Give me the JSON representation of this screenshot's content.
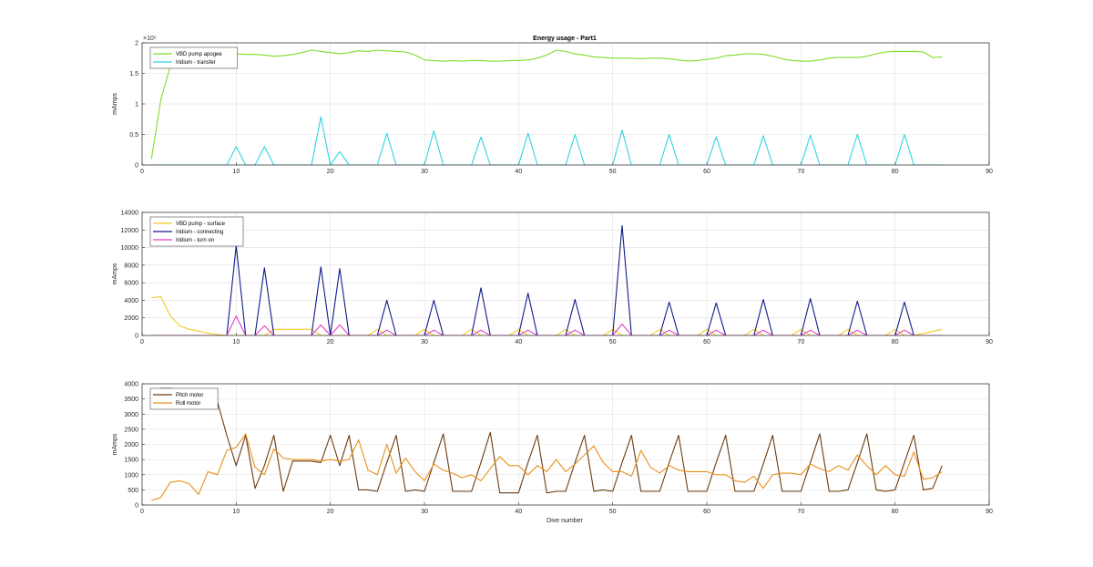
{
  "title": "Energy usage - Part1",
  "xlabel": "Dive number",
  "chart_data": [
    {
      "type": "line",
      "title": "Energy usage - Part1",
      "ylabel": "mAmps",
      "exponent_label": "×10⁵",
      "xlim": [
        0,
        90
      ],
      "ylim": [
        0,
        2
      ],
      "xticks": [
        "0",
        "10",
        "20",
        "30",
        "40",
        "50",
        "60",
        "70",
        "80",
        "90"
      ],
      "yticks": [
        "0",
        "0.5",
        "1",
        "1.5",
        "2"
      ],
      "legend_position": "top-left",
      "grid": true,
      "series": [
        {
          "name": "VBD pump apogee",
          "color": "#7fdc27",
          "x": [
            1,
            2,
            3,
            4,
            5,
            6,
            7,
            8,
            9,
            10,
            11,
            12,
            13,
            14,
            15,
            16,
            17,
            18,
            19,
            20,
            21,
            22,
            23,
            24,
            25,
            26,
            27,
            28,
            29,
            30,
            31,
            32,
            33,
            34,
            35,
            36,
            37,
            38,
            39,
            40,
            41,
            42,
            43,
            44,
            45,
            46,
            47,
            48,
            49,
            50,
            51,
            52,
            53,
            54,
            55,
            56,
            57,
            58,
            59,
            60,
            61,
            62,
            63,
            64,
            65,
            66,
            67,
            68,
            69,
            70,
            71,
            72,
            73,
            74,
            75,
            76,
            77,
            78,
            79,
            80,
            81,
            82,
            83,
            84,
            85
          ],
          "values": [
            0.1,
            1.08,
            1.62,
            1.83,
            1.84,
            1.84,
            1.84,
            1.83,
            1.82,
            1.82,
            1.81,
            1.81,
            1.8,
            1.78,
            1.79,
            1.81,
            1.84,
            1.88,
            1.86,
            1.84,
            1.82,
            1.84,
            1.87,
            1.86,
            1.88,
            1.87,
            1.86,
            1.85,
            1.8,
            1.72,
            1.71,
            1.7,
            1.71,
            1.7,
            1.71,
            1.71,
            1.7,
            1.7,
            1.71,
            1.71,
            1.72,
            1.75,
            1.8,
            1.88,
            1.86,
            1.82,
            1.8,
            1.77,
            1.76,
            1.75,
            1.75,
            1.75,
            1.74,
            1.75,
            1.75,
            1.74,
            1.72,
            1.7,
            1.71,
            1.73,
            1.75,
            1.79,
            1.8,
            1.82,
            1.82,
            1.81,
            1.78,
            1.74,
            1.71,
            1.7,
            1.7,
            1.72,
            1.75,
            1.76,
            1.76,
            1.76,
            1.78,
            1.82,
            1.85,
            1.86,
            1.86,
            1.86,
            1.85,
            1.76,
            1.77
          ]
        },
        {
          "name": "Iridium - transfer",
          "color": "#2fd5e2",
          "x": [
            1,
            9,
            10,
            11,
            12,
            13,
            14,
            18,
            19,
            20,
            21,
            22,
            25,
            26,
            27,
            30,
            31,
            32,
            35,
            36,
            37,
            40,
            41,
            42,
            45,
            46,
            47,
            50,
            51,
            52,
            55,
            56,
            57,
            60,
            61,
            62,
            65,
            66,
            67,
            70,
            71,
            72,
            75,
            76,
            77,
            80,
            81,
            82,
            85
          ],
          "values": [
            0,
            0,
            0.3,
            0,
            0,
            0.3,
            0,
            0,
            0.79,
            0,
            0.22,
            0,
            0,
            0.52,
            0,
            0,
            0.56,
            0,
            0,
            0.46,
            0,
            0,
            0.52,
            0,
            0,
            0.5,
            0,
            0,
            0.57,
            0,
            0,
            0.5,
            0,
            0,
            0.46,
            0,
            0,
            0.48,
            0,
            0,
            0.49,
            0,
            0,
            0.5,
            0,
            0,
            0.5,
            0,
            0
          ]
        }
      ]
    },
    {
      "type": "line",
      "ylabel": "mAmps",
      "xlim": [
        0,
        90
      ],
      "ylim": [
        0,
        14000
      ],
      "xticks": [
        "0",
        "10",
        "20",
        "30",
        "40",
        "50",
        "60",
        "70",
        "80",
        "90"
      ],
      "yticks": [
        "0",
        "2000",
        "4000",
        "6000",
        "8000",
        "10000",
        "12000",
        "14000"
      ],
      "legend_position": "top-left",
      "grid": true,
      "series": [
        {
          "name": "VBD pump - surface",
          "color": "#f2cc1f",
          "x": [
            1,
            2,
            3,
            4,
            5,
            6,
            7,
            8,
            9,
            10,
            11,
            12,
            13,
            14,
            15,
            16,
            17,
            18,
            19,
            20,
            21,
            22,
            24,
            25,
            26,
            27,
            29,
            30,
            31,
            32,
            34,
            35,
            36,
            37,
            39,
            40,
            41,
            42,
            44,
            45,
            46,
            47,
            49,
            50,
            51,
            52,
            54,
            55,
            56,
            57,
            59,
            60,
            61,
            62,
            64,
            65,
            66,
            67,
            69,
            70,
            71,
            72,
            74,
            75,
            76,
            77,
            79,
            80,
            81,
            82,
            85
          ],
          "values": [
            4300,
            4400,
            2200,
            1100,
            700,
            500,
            250,
            100,
            0,
            0,
            0,
            0,
            0,
            700,
            700,
            700,
            700,
            700,
            0,
            0,
            0,
            0,
            0,
            700,
            0,
            0,
            0,
            700,
            0,
            0,
            0,
            700,
            0,
            0,
            0,
            700,
            0,
            0,
            0,
            700,
            0,
            0,
            0,
            700,
            0,
            0,
            0,
            700,
            0,
            0,
            0,
            700,
            0,
            0,
            0,
            700,
            0,
            0,
            0,
            700,
            0,
            0,
            0,
            700,
            0,
            0,
            0,
            700,
            0,
            0,
            700
          ]
        },
        {
          "name": "Iridium - connecting",
          "color": "#0e1b8a",
          "x": [
            1,
            9,
            10,
            11,
            12,
            13,
            14,
            18,
            19,
            20,
            21,
            22,
            25,
            26,
            27,
            30,
            31,
            32,
            35,
            36,
            37,
            40,
            41,
            42,
            45,
            46,
            47,
            50,
            51,
            52,
            55,
            56,
            57,
            60,
            61,
            62,
            65,
            66,
            67,
            70,
            71,
            72,
            75,
            76,
            77,
            80,
            81,
            82,
            85
          ],
          "values": [
            0,
            0,
            10200,
            0,
            0,
            7700,
            0,
            0,
            7800,
            0,
            7600,
            0,
            0,
            4000,
            0,
            0,
            4000,
            0,
            0,
            5400,
            0,
            0,
            4800,
            0,
            0,
            4100,
            0,
            0,
            12500,
            0,
            0,
            3800,
            0,
            0,
            3700,
            0,
            0,
            4100,
            0,
            0,
            4200,
            0,
            0,
            3900,
            0,
            0,
            3800,
            0,
            0
          ]
        },
        {
          "name": "Iridium - turn on",
          "color": "#e040c8",
          "x": [
            1,
            9,
            10,
            11,
            12,
            13,
            14,
            18,
            19,
            20,
            21,
            22,
            25,
            26,
            27,
            30,
            31,
            32,
            35,
            36,
            37,
            40,
            41,
            42,
            45,
            46,
            47,
            50,
            51,
            52,
            55,
            56,
            57,
            60,
            61,
            62,
            65,
            66,
            67,
            70,
            71,
            72,
            75,
            76,
            77,
            80,
            81,
            82,
            85
          ],
          "values": [
            0,
            0,
            2200,
            0,
            0,
            1100,
            0,
            0,
            1200,
            0,
            1200,
            0,
            0,
            600,
            0,
            0,
            600,
            0,
            0,
            600,
            0,
            0,
            600,
            0,
            0,
            600,
            0,
            0,
            1300,
            0,
            0,
            600,
            0,
            0,
            600,
            0,
            0,
            600,
            0,
            0,
            600,
            0,
            0,
            600,
            0,
            0,
            600,
            0,
            0
          ]
        }
      ]
    },
    {
      "type": "line",
      "ylabel": "mAmps",
      "xlim": [
        0,
        90
      ],
      "ylim": [
        0,
        4000
      ],
      "xticks": [
        "0",
        "10",
        "20",
        "30",
        "40",
        "50",
        "60",
        "70",
        "80",
        "90"
      ],
      "yticks": [
        "0",
        "500",
        "1000",
        "1500",
        "2000",
        "2500",
        "3000",
        "3500",
        "4000"
      ],
      "legend_position": "top-left",
      "grid": true,
      "series": [
        {
          "name": "Pitch motor",
          "color": "#6b3b10",
          "x": [
            1,
            2,
            3,
            4,
            5,
            6,
            7,
            8,
            9,
            10,
            11,
            12,
            13,
            14,
            15,
            16,
            17,
            18,
            19,
            20,
            21,
            22,
            23,
            24,
            25,
            26,
            27,
            28,
            29,
            30,
            31,
            32,
            33,
            34,
            35,
            36,
            37,
            38,
            39,
            40,
            41,
            42,
            43,
            44,
            45,
            46,
            47,
            48,
            49,
            50,
            51,
            52,
            53,
            54,
            55,
            56,
            57,
            58,
            59,
            60,
            61,
            62,
            63,
            64,
            65,
            66,
            67,
            68,
            69,
            70,
            71,
            72,
            73,
            74,
            75,
            76,
            77,
            78,
            79,
            80,
            81,
            82,
            83,
            84,
            85
          ],
          "values": [
            3750,
            3850,
            3850,
            3800,
            3700,
            3650,
            3700,
            3400,
            2300,
            1300,
            2300,
            550,
            1300,
            2300,
            450,
            1450,
            1450,
            1450,
            1400,
            2300,
            1300,
            2300,
            500,
            500,
            450,
            1400,
            2300,
            450,
            500,
            450,
            1400,
            2350,
            450,
            450,
            450,
            1400,
            2400,
            400,
            400,
            400,
            1400,
            2300,
            400,
            450,
            450,
            1400,
            2300,
            450,
            500,
            450,
            1400,
            2300,
            450,
            450,
            450,
            1400,
            2300,
            450,
            450,
            450,
            1400,
            2300,
            450,
            450,
            450,
            1350,
            2300,
            450,
            450,
            450,
            1400,
            2350,
            450,
            450,
            500,
            1400,
            2350,
            500,
            450,
            500,
            1400,
            2300,
            500,
            550,
            1300
          ]
        },
        {
          "name": "Roll motor",
          "color": "#e8901a",
          "x": [
            1,
            2,
            3,
            4,
            5,
            6,
            7,
            8,
            9,
            10,
            11,
            12,
            13,
            14,
            15,
            16,
            17,
            18,
            19,
            20,
            21,
            22,
            23,
            24,
            25,
            26,
            27,
            28,
            29,
            30,
            31,
            32,
            33,
            34,
            35,
            36,
            37,
            38,
            39,
            40,
            41,
            42,
            43,
            44,
            45,
            46,
            47,
            48,
            49,
            50,
            51,
            52,
            53,
            54,
            55,
            56,
            57,
            58,
            59,
            60,
            61,
            62,
            63,
            64,
            65,
            66,
            67,
            68,
            69,
            70,
            71,
            72,
            73,
            74,
            75,
            76,
            77,
            78,
            79,
            80,
            81,
            82,
            83,
            84,
            85
          ],
          "values": [
            150,
            250,
            750,
            800,
            700,
            350,
            1100,
            1000,
            1800,
            1900,
            2350,
            1250,
            1000,
            1850,
            1550,
            1500,
            1500,
            1500,
            1450,
            1500,
            1450,
            1500,
            2150,
            1150,
            1000,
            2000,
            1050,
            1550,
            1100,
            800,
            1350,
            1150,
            1050,
            900,
            1000,
            800,
            1200,
            1600,
            1300,
            1300,
            1000,
            1300,
            1100,
            1500,
            1100,
            1350,
            1650,
            1950,
            1400,
            1100,
            1100,
            950,
            1800,
            1250,
            1050,
            1300,
            1150,
            1100,
            1100,
            1100,
            1000,
            1000,
            800,
            750,
            950,
            550,
            1000,
            1050,
            1050,
            1000,
            1350,
            1200,
            1100,
            1300,
            1150,
            1650,
            1300,
            1000,
            1300,
            1000,
            950,
            1750,
            850,
            900,
            1100
          ]
        }
      ]
    }
  ]
}
